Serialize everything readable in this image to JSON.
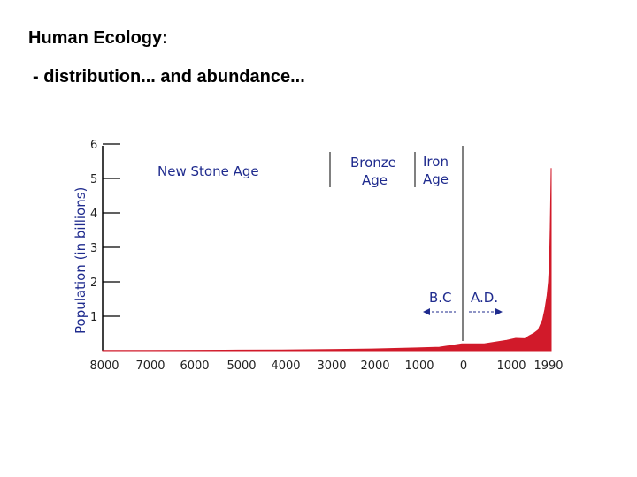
{
  "slide": {
    "title": "Human Ecology:",
    "subtitle": "- distribution... and abundance..."
  },
  "chart_data": {
    "type": "area",
    "ylabel": "Population (in billions)",
    "xlabel": "",
    "ylim": [
      0,
      6
    ],
    "yticks": [
      "1",
      "2",
      "3",
      "4",
      "5",
      "6"
    ],
    "xtick_labels": [
      "8000",
      "7000",
      "6000",
      "5000",
      "4000",
      "3000",
      "2000",
      "1000",
      "0",
      "1000",
      "1990"
    ],
    "x": [
      -8000,
      -7000,
      -6000,
      -5000,
      -4000,
      -3000,
      -2000,
      -1000,
      -500,
      0,
      500,
      1000,
      1200,
      1400,
      1500,
      1600,
      1700,
      1750,
      1800,
      1850,
      1900,
      1930,
      1950,
      1960,
      1970,
      1980,
      1990
    ],
    "y": [
      0.005,
      0.008,
      0.01,
      0.015,
      0.02,
      0.03,
      0.05,
      0.08,
      0.1,
      0.2,
      0.2,
      0.3,
      0.36,
      0.35,
      0.43,
      0.5,
      0.6,
      0.75,
      0.9,
      1.2,
      1.6,
      2.0,
      2.5,
      3.0,
      3.6,
      4.4,
      5.3
    ],
    "color": "#d11a2a",
    "annotations": {
      "new_stone_age": "New Stone Age",
      "bronze_age_1": "Bronze",
      "bronze_age_2": "Age",
      "iron_age_1": "Iron",
      "iron_age_2": "Age",
      "bc": "B.C",
      "ad": "A.D."
    }
  }
}
